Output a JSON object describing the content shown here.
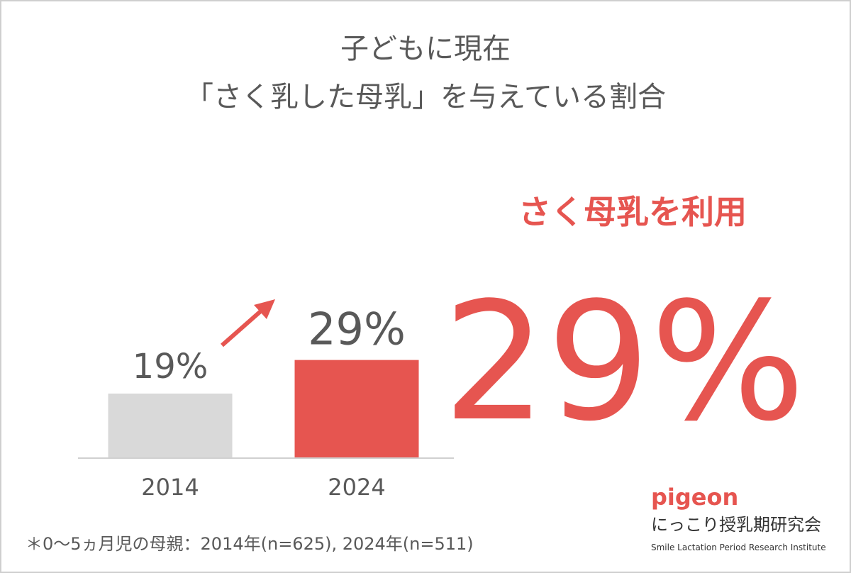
{
  "chart_data": {
    "type": "bar",
    "title": [
      "子どもに現在",
      "「さく乳した母乳」を与えている割合"
    ],
    "categories": [
      "2014",
      "2024"
    ],
    "values": [
      19,
      29
    ],
    "value_labels": [
      "19%",
      "29%"
    ],
    "colors": [
      "#d9d9d9",
      "#e65550"
    ],
    "highlight": {
      "label": "さく母乳を利用",
      "text": "29%",
      "color": "#e65550"
    },
    "footnote": "＊0〜5ヵ月児の母親：2014年(n=625), 2024年(n=511)",
    "logo": {
      "brand": "pigeon",
      "name": "にっこり授乳期研究会",
      "subtitle": "Smile Lactation Period Research Institute"
    }
  }
}
